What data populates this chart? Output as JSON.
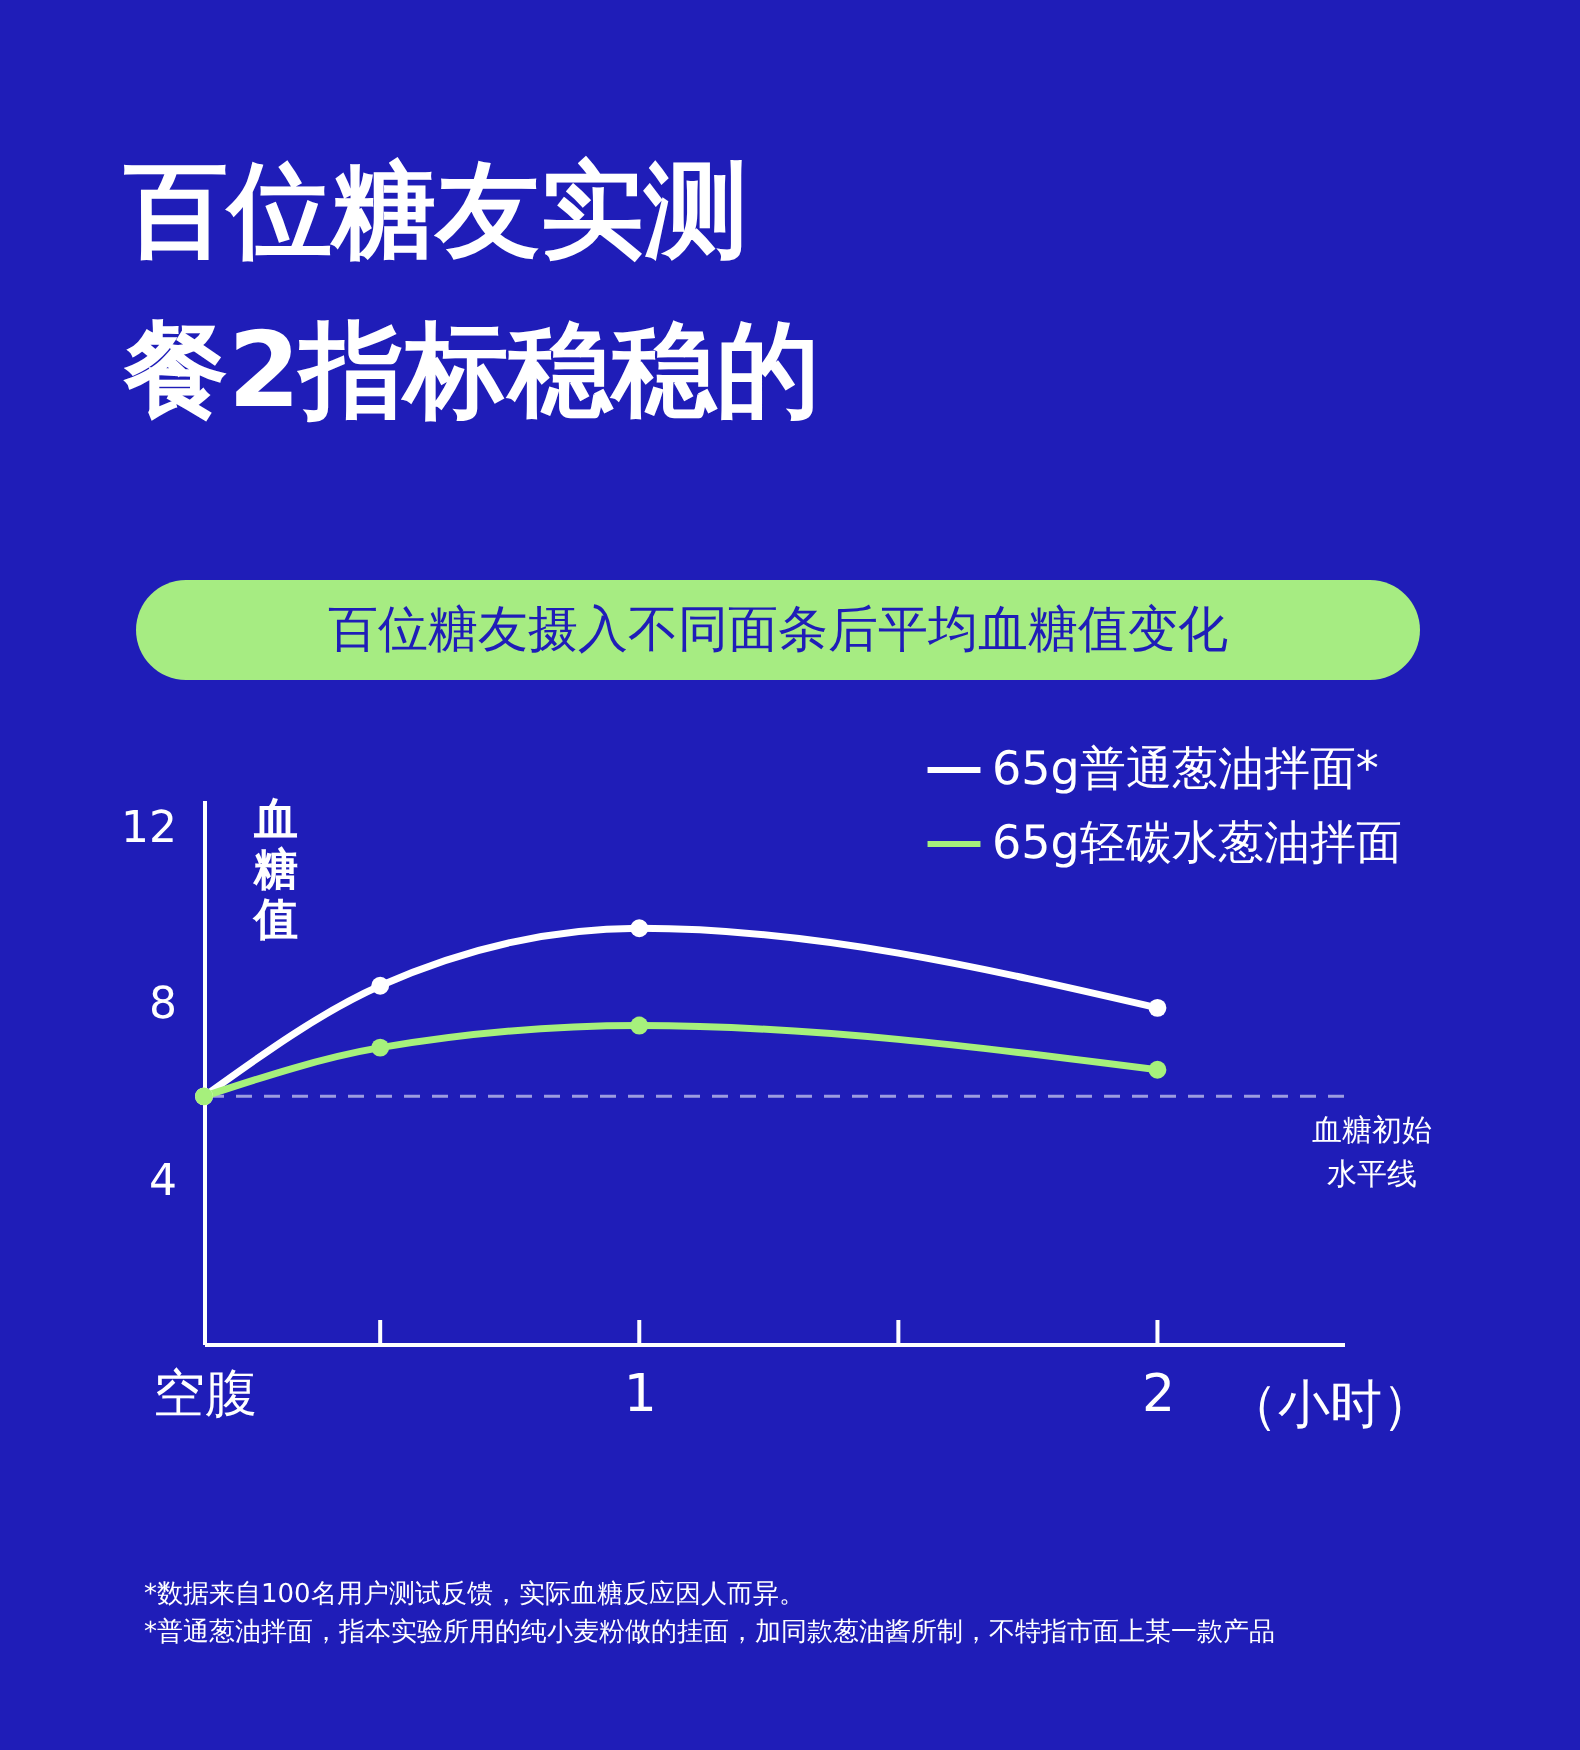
{
  "chart_data": {
    "type": "line",
    "title": [
      "百位糖友实测",
      "餐2指标稳稳的"
    ],
    "subtitle": "百位糖友摄入不同面条后平均血糖值变化",
    "ylabel": "血糖值",
    "xlabel": "（小时）",
    "x": [
      0.16,
      0.5,
      1,
      2
    ],
    "series": [
      {
        "name": "65g普通葱油拌面*",
        "color": "#ffffff",
        "values": [
          5.9,
          8.4,
          9.7,
          7.9
        ]
      },
      {
        "name": "65g轻碳水葱油拌面",
        "color": "#a6f07c",
        "values": [
          5.9,
          7.0,
          7.5,
          6.5
        ]
      }
    ],
    "xlim": [
      0.16,
      2.36
    ],
    "ylim": [
      0.3,
      12.6
    ],
    "xticks": [
      {
        "value": 0.16,
        "label": "空腹"
      },
      {
        "value": 0.5,
        "label": null
      },
      1,
      {
        "value": 1.5,
        "label": null
      },
      2
    ],
    "yticks": [
      4,
      8,
      12
    ],
    "ref_lines": [
      {
        "axis": "y",
        "value": 5.9,
        "label": "血糖初始水平线",
        "color": "#9c9ce0",
        "line_style": "dashed"
      }
    ],
    "annotations": [
      "*数据来自100名用户测试反馈，实际血糖反应因人而异。",
      "*普通葱油拌面，指本实验所用的纯小麦粉做的挂面，加同款葱油酱所制，不特指市面上某一款产品"
    ],
    "legend": "top right",
    "grid": false,
    "marker": "circle",
    "line_style": "solid"
  }
}
